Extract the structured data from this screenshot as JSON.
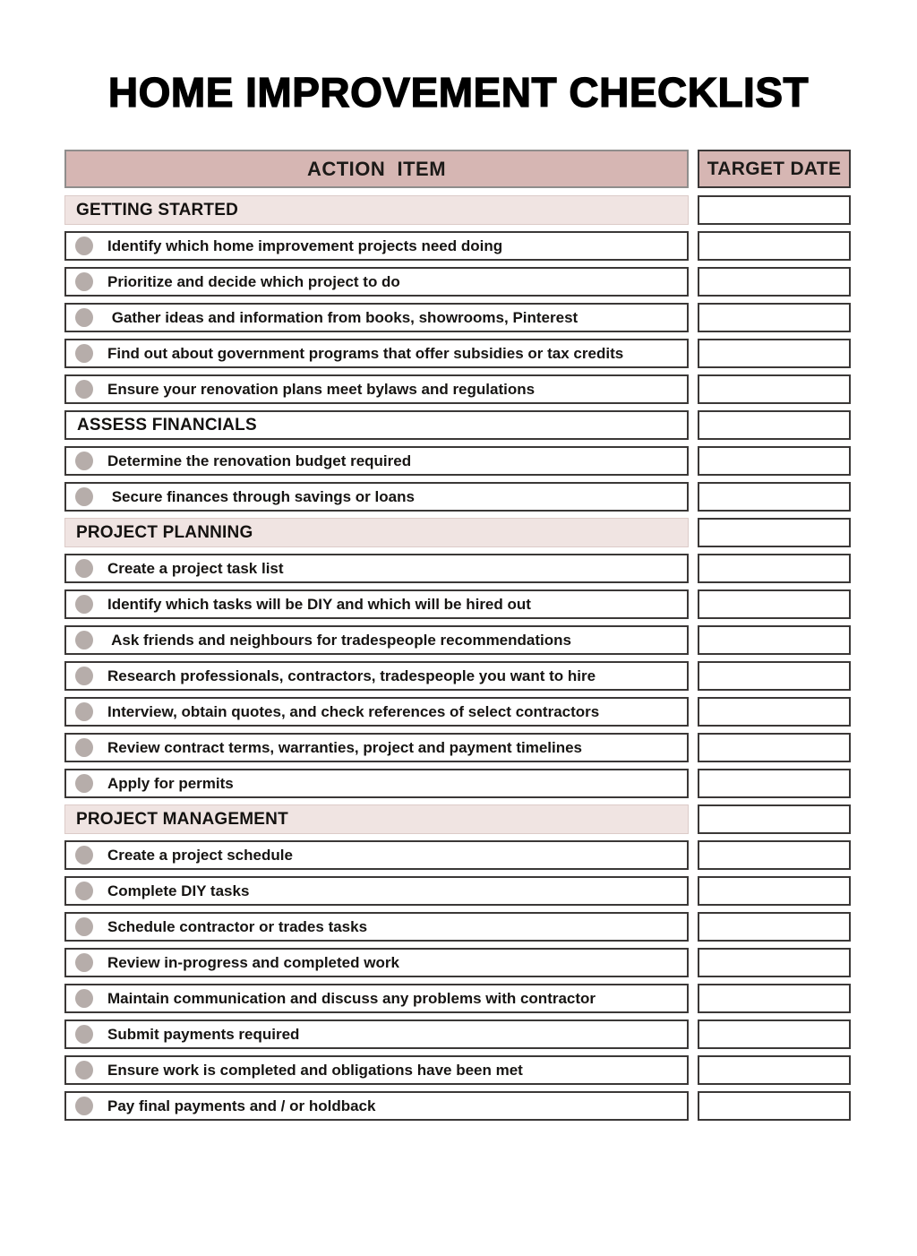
{
  "page": {
    "title": "HOME IMPROVEMENT CHECKLIST"
  },
  "table": {
    "headers": {
      "action": "ACTION  ITEM",
      "target": "TARGET DATE"
    },
    "rows": [
      {
        "type": "section",
        "variant": "pink",
        "label": "GETTING STARTED"
      },
      {
        "type": "item",
        "label": "Identify which home improvement projects need doing"
      },
      {
        "type": "item",
        "label": "Prioritize and decide which project to do"
      },
      {
        "type": "item",
        "label": " Gather ideas and information from books, showrooms, Pinterest"
      },
      {
        "type": "item",
        "label": "Find out about government programs that offer subsidies or tax credits"
      },
      {
        "type": "item",
        "label": "Ensure your renovation plans meet bylaws and regulations"
      },
      {
        "type": "section",
        "variant": "white",
        "label": "ASSESS FINANCIALS"
      },
      {
        "type": "item",
        "label": "Determine the renovation budget required"
      },
      {
        "type": "item",
        "label": " Secure finances through savings or loans"
      },
      {
        "type": "section",
        "variant": "pink",
        "label": "PROJECT PLANNING"
      },
      {
        "type": "item",
        "label": "Create a project task list"
      },
      {
        "type": "item",
        "label": "Identify which tasks will be DIY and which will be hired out"
      },
      {
        "type": "item",
        "label": " Ask friends and neighbours for tradespeople recommendations"
      },
      {
        "type": "item",
        "label": "Research professionals, contractors, tradespeople you want to hire"
      },
      {
        "type": "item",
        "label": "Interview, obtain quotes, and check references of select contractors"
      },
      {
        "type": "item",
        "label": "Review contract terms, warranties, project and payment timelines"
      },
      {
        "type": "item",
        "label": "Apply for permits"
      },
      {
        "type": "section",
        "variant": "pink",
        "label": "PROJECT MANAGEMENT"
      },
      {
        "type": "item",
        "label": "Create a project schedule"
      },
      {
        "type": "item",
        "label": "Complete DIY tasks"
      },
      {
        "type": "item",
        "label": "Schedule contractor or trades tasks"
      },
      {
        "type": "item",
        "label": "Review in-progress and completed work"
      },
      {
        "type": "item",
        "label": "Maintain communication and discuss any problems with contractor"
      },
      {
        "type": "item",
        "label": "Submit payments required"
      },
      {
        "type": "item",
        "label": "Ensure work is completed and obligations have been met"
      },
      {
        "type": "item",
        "label": "Pay final payments and / or holdback"
      }
    ]
  },
  "colors": {
    "header_fill": "#d6b6b3",
    "section_fill": "#f0e4e2",
    "bullet": "#b6adaa",
    "row_border": "#3b3837",
    "header_border": "#8f8d8c",
    "section_border": "#dccbc8"
  }
}
